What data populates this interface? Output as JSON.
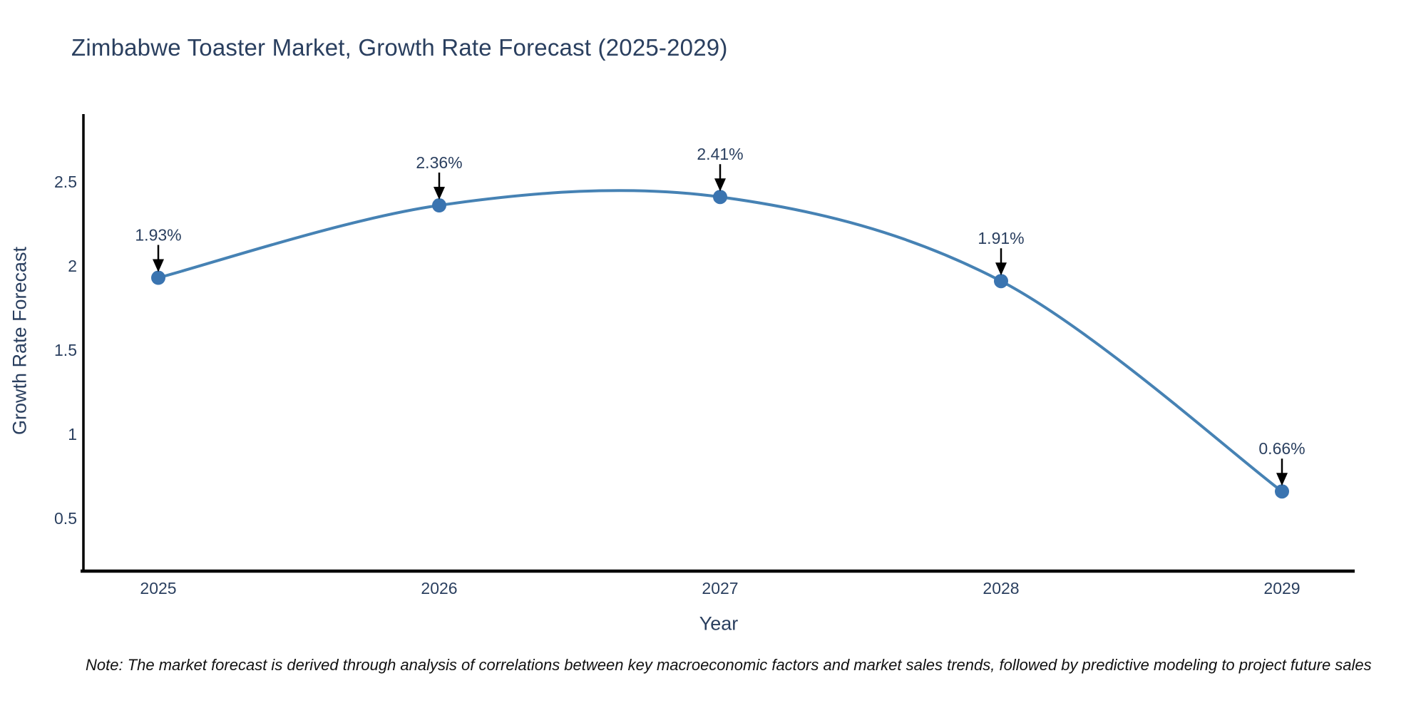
{
  "title": "Zimbabwe Toaster Market, Growth Rate Forecast (2025-2029)",
  "note": "Note: The market forecast is derived through analysis of correlations between key macroeconomic factors and market sales trends, followed by predictive modeling to project future sales",
  "chart_data": {
    "type": "line",
    "title": "Zimbabwe Toaster Market, Growth Rate Forecast (2025-2029)",
    "xlabel": "Year",
    "ylabel": "Growth Rate Forecast",
    "categories": [
      2025,
      2026,
      2027,
      2028,
      2029
    ],
    "values": [
      1.93,
      2.36,
      2.41,
      1.91,
      0.66
    ],
    "point_labels": [
      "1.93%",
      "2.36%",
      "2.41%",
      "1.91%",
      "0.66%"
    ],
    "yticks": [
      "0.5",
      "1",
      "1.5",
      "2",
      "2.5"
    ],
    "ytick_values": [
      0.5,
      1,
      1.5,
      2,
      2.5
    ],
    "ylim": [
      0.19,
      2.92
    ],
    "xlim": [
      2024.72,
      2029.26
    ],
    "line_shape": "spline",
    "grid": false,
    "legend_visible": false,
    "colors": {
      "line": "#4682b4",
      "marker": "#3a74b0",
      "axis": "#000000",
      "arrow": "#000000",
      "text": "#2a3f5f"
    }
  }
}
